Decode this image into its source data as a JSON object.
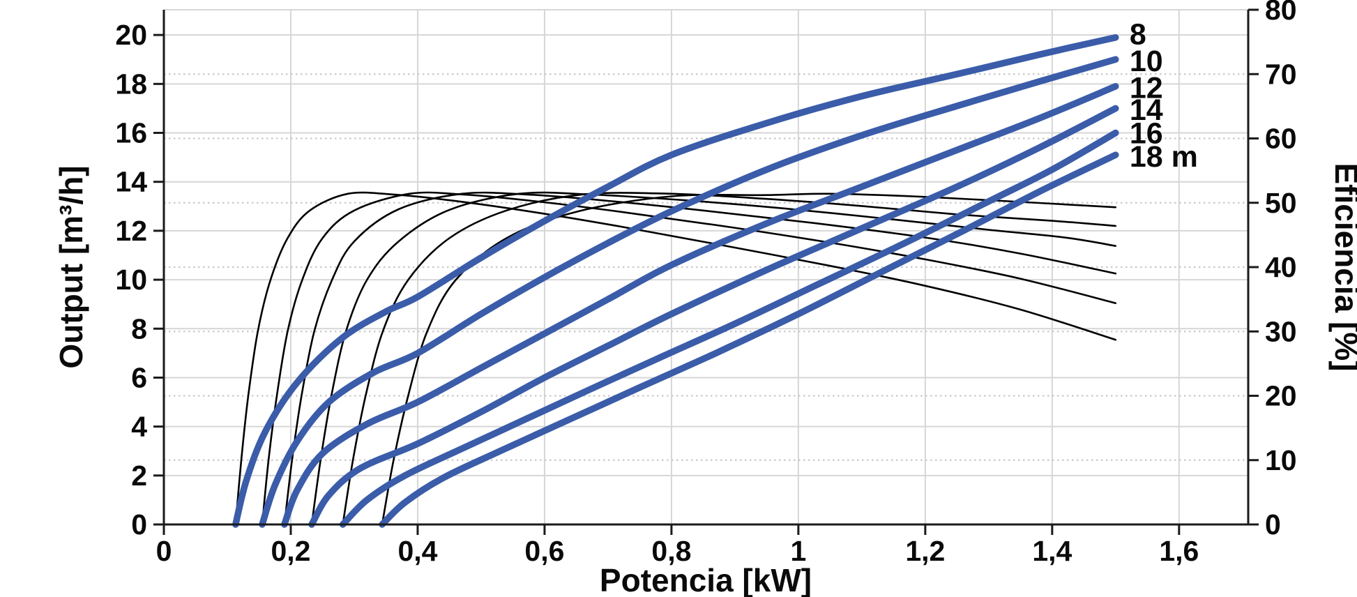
{
  "chart_data": {
    "type": "line",
    "title": "",
    "xlabel": "Potencia [kW]",
    "ylabel_left": "Output [m³/h]",
    "ylabel_right": "Eficiencia [%]",
    "decimal_separator": "comma",
    "x_axis": {
      "min": 0,
      "max": 1.709,
      "tick_values": [
        0,
        0.2,
        0.4,
        0.6,
        0.8,
        1.0,
        1.2,
        1.4,
        1.6
      ],
      "tick_labels": [
        "0",
        "0,2",
        "0,4",
        "0,6",
        "0,8",
        "1",
        "1,2",
        "1,4",
        "1,6"
      ]
    },
    "y_left": {
      "min": 0,
      "max": 21.03,
      "tick_values": [
        0,
        2,
        4,
        6,
        8,
        10,
        12,
        14,
        16,
        18,
        20
      ],
      "tick_labels": [
        "0",
        "2",
        "4",
        "6",
        "8",
        "10",
        "12",
        "14",
        "16",
        "18",
        "20"
      ]
    },
    "y_right": {
      "min": 0,
      "max": 80,
      "tick_values": [
        0,
        10,
        20,
        30,
        40,
        50,
        60,
        70,
        80
      ],
      "tick_labels": [
        "0",
        "10",
        "20",
        "30",
        "40",
        "50",
        "60",
        "70",
        "80"
      ]
    },
    "grid": {
      "solid_vertical_step_kw": 0.2,
      "solid_horizontal_step_m3h": 2,
      "dotted_horizontal_step_pct": 10,
      "grid_on": true
    },
    "colors": {
      "output_curve": "#3a5ca9",
      "efficiency_curve": "#000000",
      "grid_solid": "#d6d6d6",
      "grid_dotted": "#c9c9c9",
      "axis": "#1a1a1a",
      "background": "#ffffff"
    },
    "legend_position": "curve-end-labels",
    "output_series": [
      {
        "head_m": 8,
        "label": "8",
        "label_at": 20.05,
        "points": [
          [
            0.113,
            0
          ],
          [
            0.13,
            1.8
          ],
          [
            0.16,
            3.8
          ],
          [
            0.21,
            5.8
          ],
          [
            0.28,
            7.6
          ],
          [
            0.35,
            8.7
          ],
          [
            0.4,
            9.3
          ],
          [
            0.5,
            10.9
          ],
          [
            0.6,
            12.4
          ],
          [
            0.7,
            13.8
          ],
          [
            0.8,
            15.1
          ],
          [
            0.95,
            16.4
          ],
          [
            1.1,
            17.5
          ],
          [
            1.25,
            18.4
          ],
          [
            1.38,
            19.2
          ],
          [
            1.5,
            19.9
          ]
        ]
      },
      {
        "head_m": 10,
        "label": "10",
        "label_at": 18.95,
        "points": [
          [
            0.155,
            0
          ],
          [
            0.175,
            1.6
          ],
          [
            0.21,
            3.4
          ],
          [
            0.26,
            5.0
          ],
          [
            0.33,
            6.2
          ],
          [
            0.4,
            7.0
          ],
          [
            0.5,
            8.6
          ],
          [
            0.6,
            10.1
          ],
          [
            0.7,
            11.5
          ],
          [
            0.8,
            12.8
          ],
          [
            0.95,
            14.5
          ],
          [
            1.1,
            15.9
          ],
          [
            1.25,
            17.1
          ],
          [
            1.38,
            18.1
          ],
          [
            1.5,
            19.0
          ]
        ]
      },
      {
        "head_m": 12,
        "label": "12",
        "label_at": 17.85,
        "points": [
          [
            0.19,
            0
          ],
          [
            0.21,
            1.4
          ],
          [
            0.25,
            2.9
          ],
          [
            0.32,
            4.1
          ],
          [
            0.4,
            5.0
          ],
          [
            0.5,
            6.4
          ],
          [
            0.6,
            7.8
          ],
          [
            0.7,
            9.2
          ],
          [
            0.8,
            10.6
          ],
          [
            0.95,
            12.3
          ],
          [
            1.1,
            13.8
          ],
          [
            1.25,
            15.3
          ],
          [
            1.38,
            16.6
          ],
          [
            1.5,
            17.9
          ]
        ]
      },
      {
        "head_m": 14,
        "label": "14",
        "label_at": 16.95,
        "points": [
          [
            0.233,
            0
          ],
          [
            0.26,
            1.2
          ],
          [
            0.31,
            2.3
          ],
          [
            0.4,
            3.3
          ],
          [
            0.5,
            4.6
          ],
          [
            0.6,
            6.0
          ],
          [
            0.7,
            7.3
          ],
          [
            0.8,
            8.6
          ],
          [
            0.95,
            10.4
          ],
          [
            1.1,
            12.1
          ],
          [
            1.25,
            13.8
          ],
          [
            1.38,
            15.4
          ],
          [
            1.5,
            17.0
          ]
        ]
      },
      {
        "head_m": 16,
        "label": "16",
        "label_at": 16.0,
        "points": [
          [
            0.282,
            0
          ],
          [
            0.32,
            1.0
          ],
          [
            0.38,
            2.0
          ],
          [
            0.47,
            3.1
          ],
          [
            0.57,
            4.3
          ],
          [
            0.67,
            5.5
          ],
          [
            0.78,
            6.8
          ],
          [
            0.9,
            8.2
          ],
          [
            1.03,
            9.8
          ],
          [
            1.16,
            11.4
          ],
          [
            1.3,
            13.2
          ],
          [
            1.4,
            14.5
          ],
          [
            1.5,
            16.0
          ]
        ]
      },
      {
        "head_m": 18,
        "label": "18 m",
        "label_at": 15.05,
        "points": [
          [
            0.344,
            0
          ],
          [
            0.38,
            0.9
          ],
          [
            0.44,
            1.9
          ],
          [
            0.53,
            3.0
          ],
          [
            0.64,
            4.3
          ],
          [
            0.75,
            5.6
          ],
          [
            0.87,
            7.0
          ],
          [
            1.0,
            8.6
          ],
          [
            1.13,
            10.3
          ],
          [
            1.26,
            12.0
          ],
          [
            1.38,
            13.6
          ],
          [
            1.5,
            15.1
          ]
        ]
      }
    ],
    "efficiency_series": [
      {
        "head_m": 8,
        "points": [
          [
            0.113,
            0
          ],
          [
            0.122,
            10
          ],
          [
            0.133,
            20
          ],
          [
            0.148,
            30
          ],
          [
            0.168,
            38
          ],
          [
            0.195,
            44.5
          ],
          [
            0.23,
            48.8
          ],
          [
            0.29,
            51.4
          ],
          [
            0.36,
            51.3
          ],
          [
            0.45,
            50.4
          ],
          [
            0.58,
            48.6
          ],
          [
            0.72,
            46.3
          ],
          [
            0.88,
            43.4
          ],
          [
            1.05,
            40.2
          ],
          [
            1.2,
            37.1
          ],
          [
            1.35,
            33.4
          ],
          [
            1.5,
            28.7
          ]
        ]
      },
      {
        "head_m": 10,
        "points": [
          [
            0.155,
            0
          ],
          [
            0.165,
            10
          ],
          [
            0.178,
            20
          ],
          [
            0.195,
            30
          ],
          [
            0.218,
            38
          ],
          [
            0.25,
            44.5
          ],
          [
            0.3,
            48.8
          ],
          [
            0.387,
            51.4
          ],
          [
            0.47,
            51.3
          ],
          [
            0.58,
            50.3
          ],
          [
            0.72,
            48.6
          ],
          [
            0.88,
            46.4
          ],
          [
            1.05,
            43.8
          ],
          [
            1.2,
            41.2
          ],
          [
            1.35,
            38.2
          ],
          [
            1.5,
            34.4
          ]
        ]
      },
      {
        "head_m": 12,
        "points": [
          [
            0.19,
            0
          ],
          [
            0.202,
            10
          ],
          [
            0.217,
            20
          ],
          [
            0.237,
            30
          ],
          [
            0.265,
            38
          ],
          [
            0.3,
            44
          ],
          [
            0.37,
            49
          ],
          [
            0.47,
            51.4
          ],
          [
            0.57,
            51.3
          ],
          [
            0.7,
            50.3
          ],
          [
            0.85,
            48.8
          ],
          [
            1.02,
            46.9
          ],
          [
            1.2,
            44.6
          ],
          [
            1.35,
            42.1
          ],
          [
            1.5,
            39.0
          ]
        ]
      },
      {
        "head_m": 14,
        "points": [
          [
            0.233,
            0
          ],
          [
            0.247,
            10
          ],
          [
            0.264,
            20
          ],
          [
            0.287,
            30
          ],
          [
            0.32,
            38
          ],
          [
            0.37,
            44
          ],
          [
            0.45,
            48.9
          ],
          [
            0.56,
            51.4
          ],
          [
            0.67,
            51.3
          ],
          [
            0.82,
            50.4
          ],
          [
            0.98,
            49.1
          ],
          [
            1.15,
            47.4
          ],
          [
            1.3,
            45.8
          ],
          [
            1.42,
            44.6
          ],
          [
            1.5,
            43.3
          ]
        ]
      },
      {
        "head_m": 16,
        "points": [
          [
            0.282,
            0
          ],
          [
            0.298,
            10
          ],
          [
            0.318,
            20
          ],
          [
            0.345,
            30
          ],
          [
            0.385,
            38
          ],
          [
            0.45,
            44.5
          ],
          [
            0.54,
            48.8
          ],
          [
            0.66,
            51.3
          ],
          [
            0.8,
            51.4
          ],
          [
            0.95,
            50.6
          ],
          [
            1.1,
            49.5
          ],
          [
            1.25,
            48.2
          ],
          [
            1.4,
            47.2
          ],
          [
            1.5,
            46.4
          ]
        ]
      },
      {
        "head_m": 18,
        "points": [
          [
            0.344,
            0
          ],
          [
            0.362,
            10
          ],
          [
            0.385,
            20
          ],
          [
            0.415,
            30
          ],
          [
            0.46,
            38
          ],
          [
            0.54,
            44.5
          ],
          [
            0.65,
            48.6
          ],
          [
            0.8,
            51.0
          ],
          [
            0.95,
            51.2
          ],
          [
            1.05,
            51.4
          ],
          [
            1.18,
            51.0
          ],
          [
            1.32,
            50.3
          ],
          [
            1.5,
            49.3
          ]
        ]
      }
    ]
  }
}
